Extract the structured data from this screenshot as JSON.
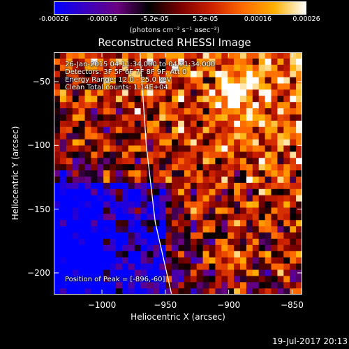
{
  "colorbar": {
    "tick_labels": [
      "-0.00026",
      "-0.00016",
      "-5.2e-05",
      "5.2e-05",
      "0.00016",
      "0.00026"
    ],
    "tick_values": [
      -0.00026,
      -0.00016,
      -5.2e-05,
      5.2e-05,
      0.00016,
      0.00026
    ],
    "range": [
      -0.00026,
      0.00026
    ],
    "units_label": "(photons cm⁻² s⁻¹ asec⁻²)",
    "colormap": [
      "#0000ff",
      "#3a00c0",
      "#6a0080",
      "#000000",
      "#7a0000",
      "#cc2000",
      "#ff6a00",
      "#ffb000",
      "#ffffff"
    ]
  },
  "chart_data": {
    "type": "heatmap",
    "title": "Reconstructed RHESSI Image",
    "xlabel": "Heliocentric X (arcsec)",
    "ylabel": "Heliocentric Y (arcsec)",
    "xlim": [
      -1038,
      -842
    ],
    "ylim": [
      -217,
      -27
    ],
    "x_ticks": [
      -1000,
      -950,
      -900,
      -850
    ],
    "x_tick_labels": [
      "−1000",
      "−950",
      "−900",
      "−850"
    ],
    "y_ticks": [
      -50,
      -100,
      -150,
      -200
    ],
    "y_tick_labels": [
      "−50",
      "−100",
      "−150",
      "−200"
    ],
    "annotations": [
      "26-Jan-2015 04:11:34.000 to 04:21:34.000",
      "Detectors: 3F 5F 6F 7F 8F 9F, Att 0",
      "Energy Range: 12.0 - 25.0 keV",
      "Clean     Total counts: 1.14E+04"
    ],
    "peak_label": "Position of Peak = [-896,-60]",
    "peak": [
      -896,
      -60
    ],
    "limb_curve": {
      "points": [
        [
          -970,
          -27
        ],
        [
          -965,
          -100
        ],
        [
          -958,
          -160
        ],
        [
          -945,
          -217
        ]
      ],
      "color": "#ffffff"
    }
  },
  "footer": {
    "timestamp": "19-Jul-2017 20:13"
  }
}
